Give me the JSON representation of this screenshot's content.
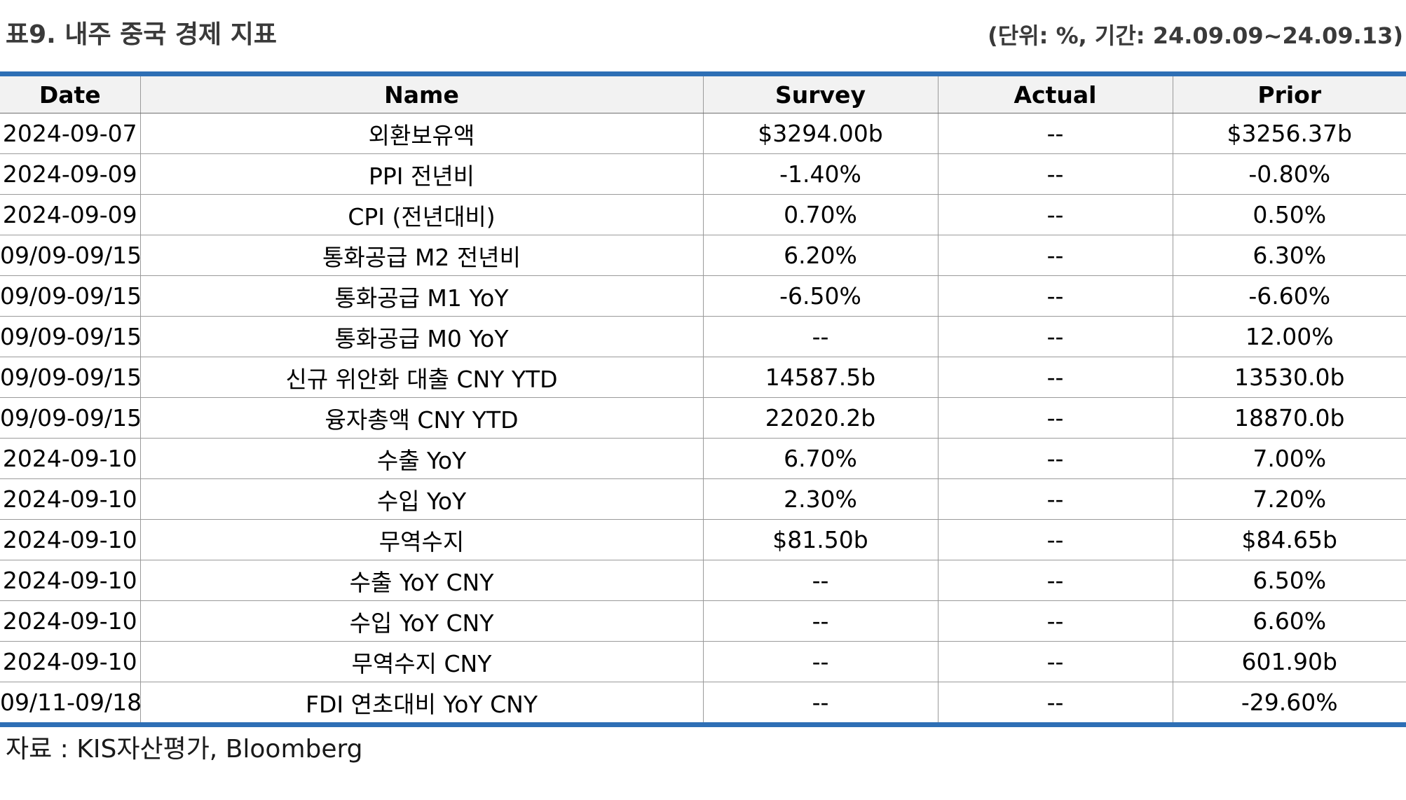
{
  "header": {
    "title": "표9. 내주 중국 경제 지표",
    "unit_note": "(단위: %, 기간: 24.09.09~24.09.13)"
  },
  "table": {
    "columns": [
      "Date",
      "Name",
      "Survey",
      "Actual",
      "Prior"
    ],
    "rows": [
      [
        "2024-09-07",
        "외환보유액",
        "$3294.00b",
        "--",
        "$3256.37b"
      ],
      [
        "2024-09-09",
        "PPI 전년비",
        "-1.40%",
        "--",
        "-0.80%"
      ],
      [
        "2024-09-09",
        "CPI (전년대비)",
        "0.70%",
        "--",
        "0.50%"
      ],
      [
        "09/09-09/15",
        "통화공급 M2 전년비",
        "6.20%",
        "--",
        "6.30%"
      ],
      [
        "09/09-09/15",
        "통화공급 M1 YoY",
        "-6.50%",
        "--",
        "-6.60%"
      ],
      [
        "09/09-09/15",
        "통화공급 M0 YoY",
        "--",
        "--",
        "12.00%"
      ],
      [
        "09/09-09/15",
        "신규 위안화 대출 CNY YTD",
        "14587.5b",
        "--",
        "13530.0b"
      ],
      [
        "09/09-09/15",
        "융자총액 CNY YTD",
        "22020.2b",
        "--",
        "18870.0b"
      ],
      [
        "2024-09-10",
        "수출 YoY",
        "6.70%",
        "--",
        "7.00%"
      ],
      [
        "2024-09-10",
        "수입 YoY",
        "2.30%",
        "--",
        "7.20%"
      ],
      [
        "2024-09-10",
        "무역수지",
        "$81.50b",
        "--",
        "$84.65b"
      ],
      [
        "2024-09-10",
        "수출 YoY CNY",
        "--",
        "--",
        "6.50%"
      ],
      [
        "2024-09-10",
        "수입 YoY CNY",
        "--",
        "--",
        "6.60%"
      ],
      [
        "2024-09-10",
        "무역수지 CNY",
        "--",
        "--",
        "601.90b"
      ],
      [
        "09/11-09/18",
        "FDI 연초대비 YoY CNY",
        "--",
        "--",
        "-29.60%"
      ]
    ]
  },
  "footer": {
    "source": "자료 : KIS자산평가, Bloomberg"
  },
  "colors": {
    "accent_rule": "#2e6fb5",
    "header_bg": "#f2f2f2"
  }
}
